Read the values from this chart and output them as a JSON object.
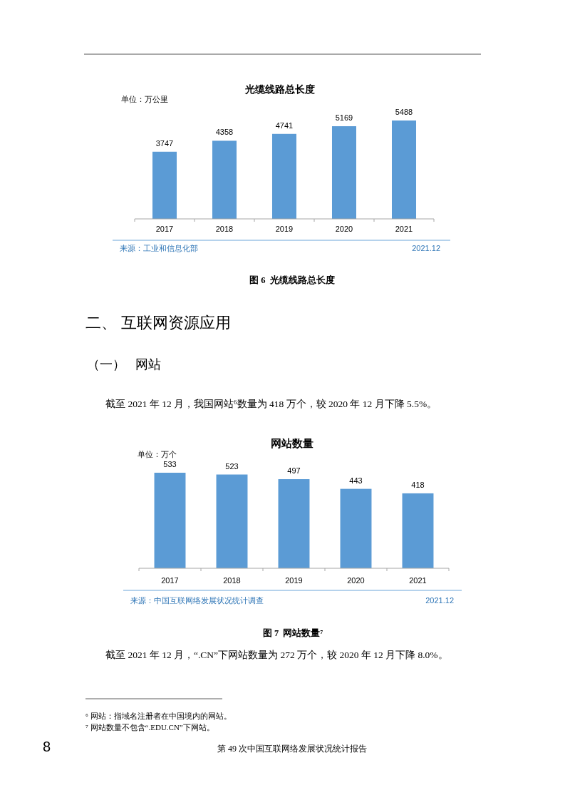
{
  "chart_data": [
    {
      "type": "bar",
      "title": "光缆线路总长度",
      "ylabel": "单位：万公里",
      "categories": [
        "2017",
        "2018",
        "2019",
        "2020",
        "2021"
      ],
      "values": [
        3747,
        4358,
        4741,
        5169,
        5488
      ],
      "color": "#5b9bd5",
      "data_labels": true,
      "tick_labels": "x",
      "annotations": [
        "来源：工业和信息化部",
        "2021.12",
        "图 6  光缆线路总长度"
      ]
    },
    {
      "type": "bar",
      "title": "网站数量",
      "ylabel": "单位：万个",
      "categories": [
        "2017",
        "2018",
        "2019",
        "2020",
        "2021"
      ],
      "values": [
        533,
        523,
        497,
        443,
        418
      ],
      "color": "#5b9bd5",
      "data_labels": true,
      "tick_labels": "x",
      "annotations": [
        "二、 互联网资源应用",
        "（一）   网站",
        "截至 2021 年 12 月，我国网站⁶数量为 418 万个，较 2020 年 12 月下降 5.5%。",
        "来源：中国互联网络发展状况统计调查",
        "2021.12",
        "图 7  网站数量⁷",
        "截至 2021 年 12 月，“.CN”下网站数量为 272 万个，较 2020 年 12 月下降 8.0%。",
        "⁶ 网站：指域名注册者在中国境内的网站。",
        "⁷ 网站数量不包含“.EDU.CN”下网站。",
        "第 49 次中国互联网络发展状况统计报告",
        "8"
      ]
    }
  ]
}
